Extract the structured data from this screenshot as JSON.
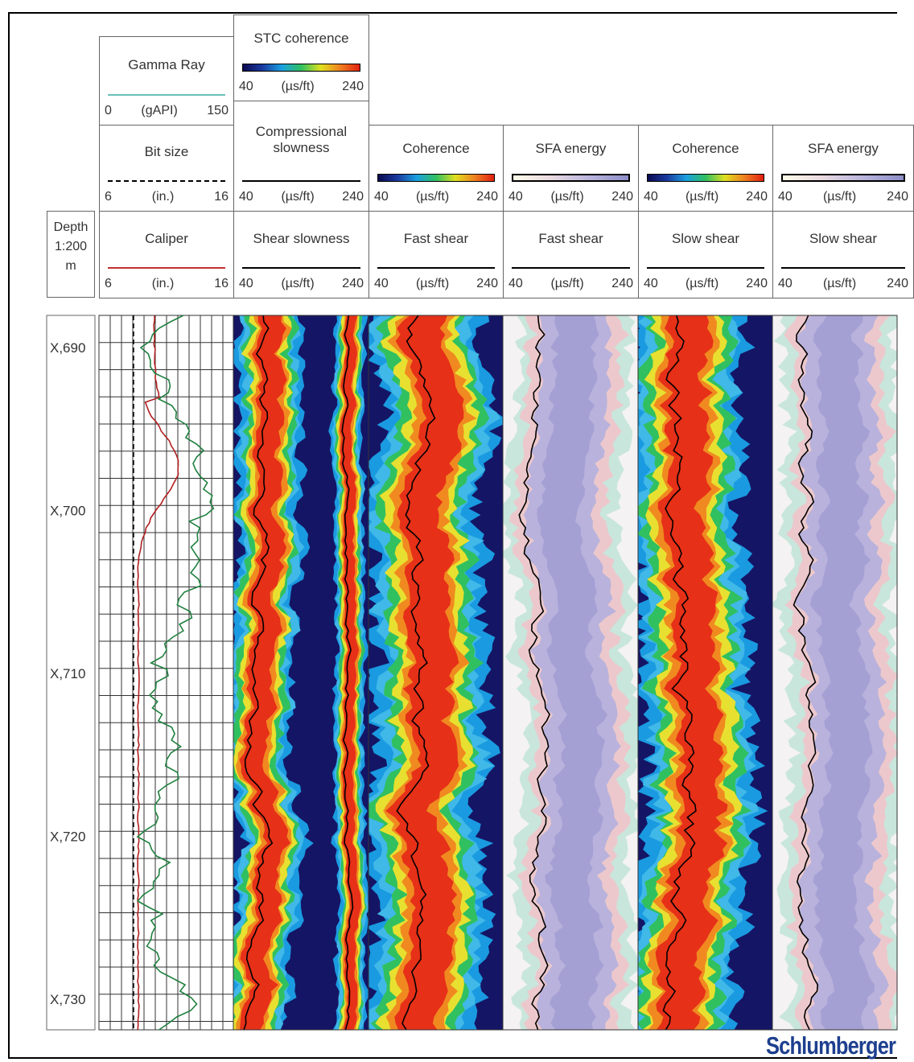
{
  "depth_header": {
    "label": "Depth",
    "scale": "1:200",
    "unit": "m"
  },
  "depths": [
    "X,690",
    "X,700",
    "X,710",
    "X,720",
    "X,730"
  ],
  "tracks": [
    {
      "cells": [
        {
          "name": "Gamma Ray",
          "min": 0,
          "unit": "(gAPI)",
          "max": 150
        },
        {
          "name": "Bit size",
          "min": 6,
          "unit": "(in.)",
          "max": 16
        },
        {
          "name": "Caliper",
          "min": 6,
          "unit": "(in.)",
          "max": 16
        }
      ]
    },
    {
      "cells": [
        {
          "name": "STC coherence",
          "min": 40,
          "unit": "(µs/ft)",
          "max": 240
        },
        {
          "name": "Compressional slowness",
          "min": 40,
          "unit": "(µs/ft)",
          "max": 240
        },
        {
          "name": "Shear slowness",
          "min": 40,
          "unit": "(µs/ft)",
          "max": 240
        }
      ]
    },
    {
      "cells": [
        {
          "name": "Coherence",
          "min": 40,
          "unit": "(µs/ft)",
          "max": 240
        },
        {
          "name": "Fast shear",
          "min": 40,
          "unit": "(µs/ft)",
          "max": 240
        }
      ]
    },
    {
      "cells": [
        {
          "name": "SFA energy",
          "min": 40,
          "unit": "(µs/ft)",
          "max": 240
        },
        {
          "name": "Fast shear",
          "min": 40,
          "unit": "(µs/ft)",
          "max": 240
        }
      ]
    },
    {
      "cells": [
        {
          "name": "Coherence",
          "min": 40,
          "unit": "(µs/ft)",
          "max": 240
        },
        {
          "name": "Slow shear",
          "min": 40,
          "unit": "(µs/ft)",
          "max": 240
        }
      ]
    },
    {
      "cells": [
        {
          "name": "SFA energy",
          "min": 40,
          "unit": "(µs/ft)",
          "max": 240
        },
        {
          "name": "Slow shear",
          "min": 40,
          "unit": "(µs/ft)",
          "max": 240
        }
      ]
    }
  ],
  "logo": "Schlumberger"
}
